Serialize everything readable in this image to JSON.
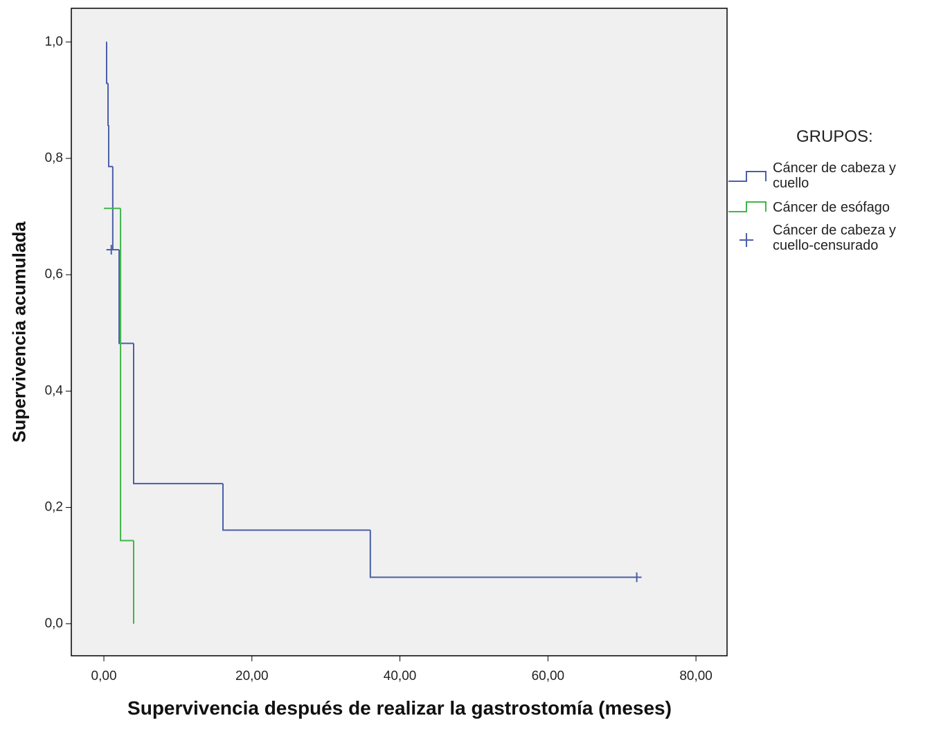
{
  "chart_data": {
    "type": "step",
    "xlabel": "Supervivencia después de realizar la gastrostomía (meses)",
    "ylabel": "Supervivencia acumulada",
    "legend_title": "GRUPOS:",
    "legend": "right",
    "xlim": [
      -4.4,
      84.2
    ],
    "ylim": [
      -0.055,
      1.058
    ],
    "xticks": [
      {
        "value": 0,
        "label": "0,00"
      },
      {
        "value": 20,
        "label": "20,00"
      },
      {
        "value": 40,
        "label": "40,00"
      },
      {
        "value": 60,
        "label": "60,00"
      },
      {
        "value": 80,
        "label": "80,00"
      }
    ],
    "yticks": [
      {
        "value": 0,
        "label": "0,0"
      },
      {
        "value": 0.2,
        "label": "0,2"
      },
      {
        "value": 0.4,
        "label": "0,4"
      },
      {
        "value": 0.6,
        "label": "0,6"
      },
      {
        "value": 0.8,
        "label": "0,8"
      },
      {
        "value": 1.0,
        "label": "1,0"
      }
    ],
    "series": [
      {
        "name": "Cáncer de cabeza y cuello",
        "color": "#4a5ea8",
        "style": "step",
        "x": [
          0.28,
          0.37,
          0.56,
          0.65,
          1.2,
          2.06,
          4.02,
          16.09,
          36.0,
          72.0
        ],
        "values": [
          1.0,
          0.929,
          0.857,
          0.786,
          0.643,
          0.482,
          0.241,
          0.161,
          0.08,
          0.08
        ]
      },
      {
        "name": "Cáncer de esófago",
        "color": "#3fb54a",
        "style": "step",
        "x": [
          0,
          2.25,
          4.02
        ],
        "values": [
          0.714,
          0.143,
          0.0
        ]
      },
      {
        "name": "Cáncer de cabeza y cuello-censurado",
        "color": "#4a5ea8",
        "style": "censored",
        "x": [
          1.0,
          72.0
        ],
        "values": [
          0.643,
          0.08
        ]
      }
    ]
  }
}
